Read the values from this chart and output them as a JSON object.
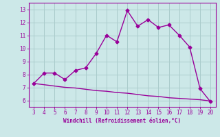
{
  "xlabel": "Windchill (Refroidissement éolien,°C)",
  "x_data": [
    3,
    4,
    5,
    6,
    7,
    8,
    9,
    10,
    11,
    12,
    13,
    14,
    15,
    16,
    17,
    18,
    19,
    20
  ],
  "y_main": [
    7.3,
    8.1,
    8.1,
    7.6,
    8.3,
    8.5,
    9.6,
    11.0,
    10.5,
    12.9,
    11.7,
    12.2,
    11.6,
    11.8,
    11.0,
    10.1,
    6.9,
    5.9
  ],
  "y_line": [
    7.3,
    7.2,
    7.1,
    7.0,
    6.95,
    6.85,
    6.75,
    6.7,
    6.6,
    6.55,
    6.45,
    6.35,
    6.3,
    6.2,
    6.15,
    6.1,
    6.05,
    5.95
  ],
  "ylim": [
    5.5,
    13.5
  ],
  "xlim": [
    2.5,
    20.5
  ],
  "yticks": [
    6,
    7,
    8,
    9,
    10,
    11,
    12,
    13
  ],
  "xticks": [
    3,
    4,
    5,
    6,
    7,
    8,
    9,
    10,
    11,
    12,
    13,
    14,
    15,
    16,
    17,
    18,
    19,
    20
  ],
  "line_color": "#990099",
  "bg_color": "#cce8e8",
  "grid_color": "#aacccc",
  "marker": "D",
  "marker_size": 2.5,
  "line_width": 1.0
}
